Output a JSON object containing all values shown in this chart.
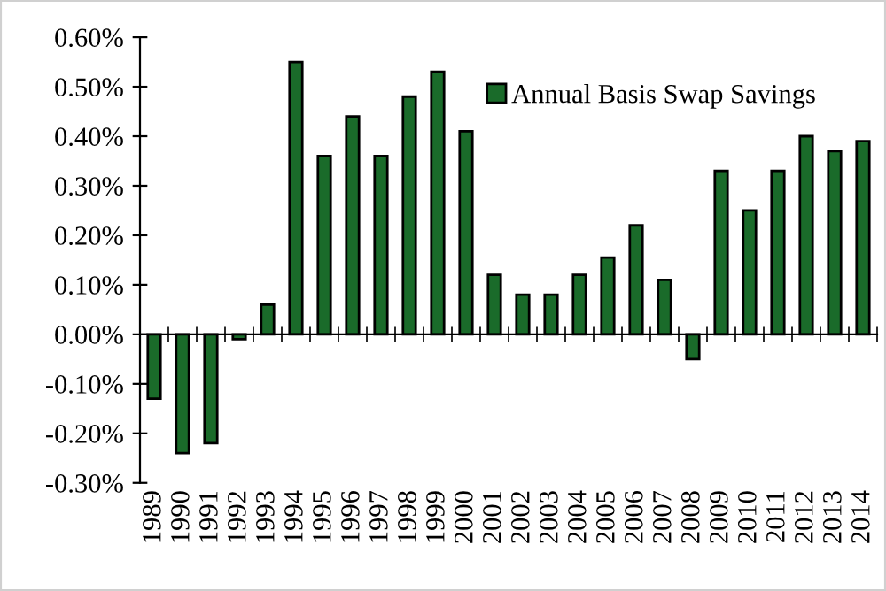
{
  "chart_data": {
    "type": "bar",
    "categories": [
      "1989",
      "1990",
      "1991",
      "1992",
      "1993",
      "1994",
      "1995",
      "1996",
      "1997",
      "1998",
      "1999",
      "2000",
      "2001",
      "2002",
      "2003",
      "2004",
      "2005",
      "2006",
      "2007",
      "2008",
      "2009",
      "2010",
      "2011",
      "2012",
      "2013",
      "2014"
    ],
    "series": [
      {
        "name": "Annual Basis Swap Savings",
        "color": "#1a6b2a",
        "values": [
          -0.13,
          -0.24,
          -0.22,
          -0.01,
          0.06,
          0.55,
          0.36,
          0.44,
          0.36,
          0.48,
          0.53,
          0.41,
          0.12,
          0.08,
          0.08,
          0.12,
          0.155,
          0.22,
          0.11,
          -0.05,
          0.33,
          0.25,
          0.33,
          0.4,
          0.37,
          0.39
        ]
      }
    ],
    "ylim": [
      -0.3,
      0.6
    ],
    "yticks": [
      {
        "value": -0.3,
        "label": "-0.30%"
      },
      {
        "value": -0.2,
        "label": "-0.20%"
      },
      {
        "value": -0.1,
        "label": "-0.10%"
      },
      {
        "value": 0,
        "label": "0.00%"
      },
      {
        "value": 0.1,
        "label": "0.10%"
      },
      {
        "value": 0.2,
        "label": "0.20%"
      },
      {
        "value": 0.3,
        "label": "0.30%"
      },
      {
        "value": 0.4,
        "label": "0.40%"
      },
      {
        "value": 0.5,
        "label": "0.50%"
      },
      {
        "value": 0.6,
        "label": "0.60%"
      }
    ],
    "legend": "top right"
  }
}
